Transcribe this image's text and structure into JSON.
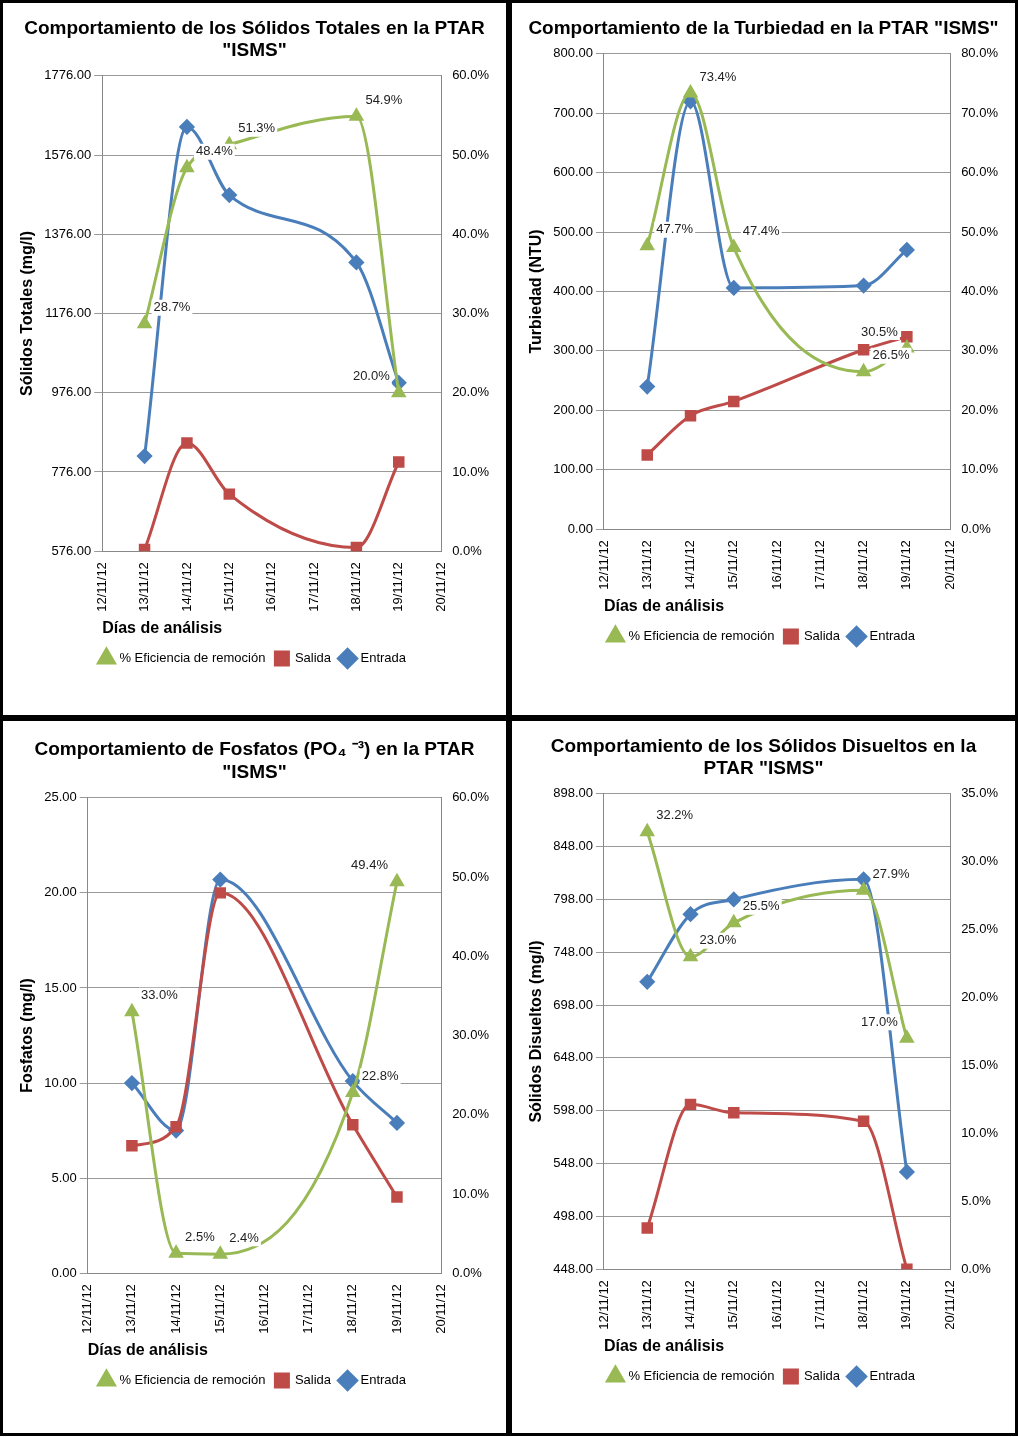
{
  "chart_data": [
    {
      "type": "line",
      "title": "Comportamiento  de los Sólidos Totales en la PTAR \"ISMS\"",
      "xlabel": "Días de análisis",
      "ylabel": "Sólidos Totales (mg/l)",
      "x": [
        "--11-13",
        "--11-14",
        "--11-15",
        "--11-18",
        "--11-19"
      ],
      "xlim": [
        "--11-12",
        "--11-20"
      ],
      "xticks": [
        {
          "value": "--11-12",
          "label": "12/11/12"
        },
        {
          "value": "--11-13",
          "label": "13/11/12"
        },
        {
          "value": "--11-14",
          "label": "14/11/12"
        },
        {
          "value": "--11-15",
          "label": "15/11/12"
        },
        {
          "value": "--11-16",
          "label": "16/11/12"
        },
        {
          "value": "--11-17",
          "label": "17/11/12"
        },
        {
          "value": "--11-18",
          "label": "18/11/12"
        },
        {
          "value": "--11-19",
          "label": "19/11/12"
        },
        {
          "value": "--11-20",
          "label": "20/11/12"
        }
      ],
      "ylim": [
        576,
        1776
      ],
      "yticks": [
        {
          "value": 576,
          "label": "576.00"
        },
        {
          "value": 776,
          "label": "776.00"
        },
        {
          "value": 976,
          "label": "976.00"
        },
        {
          "value": 1176,
          "label": "1176.00"
        },
        {
          "value": 1376,
          "label": "1376.00"
        },
        {
          "value": 1576,
          "label": "1576.00"
        },
        {
          "value": 1776,
          "label": "1776.00"
        }
      ],
      "y2lim": [
        0,
        60
      ],
      "y2ticks": [
        {
          "value": 0,
          "label": "0.0%"
        },
        {
          "value": 10,
          "label": "10.0%"
        },
        {
          "value": 20,
          "label": "20.0%"
        },
        {
          "value": 30,
          "label": "30.0%"
        },
        {
          "value": 40,
          "label": "40.0%"
        },
        {
          "value": 50,
          "label": "50.0%"
        },
        {
          "value": 60,
          "label": "60.0%"
        }
      ],
      "grid": "y",
      "legend": "bottom",
      "series": [
        {
          "name": "Entrada",
          "color": "#4a7ebb",
          "marker": "diamond",
          "values": [
            816,
            1647,
            1475,
            1305,
            1001
          ]
        },
        {
          "name": "Salida",
          "color": "#be4b48",
          "marker": "square",
          "values": [
            580,
            849,
            720,
            585,
            801
          ]
        },
        {
          "name": "% Eficiencia de remoción",
          "color": "#98b954",
          "marker": "triangle",
          "axis": "y2",
          "values": [
            28.7,
            48.4,
            51.3,
            54.9,
            20.0
          ],
          "value_labels": [
            "28.7%",
            "48.4%",
            "51.3%",
            "54.9%",
            "20.0%"
          ]
        }
      ]
    },
    {
      "type": "line",
      "title": "Comportamiento  de la Turbiedad en la PTAR \"ISMS\"",
      "xlabel": "Días de análisis",
      "ylabel": "Turbiedad (NTU)",
      "x": [
        "--11-13",
        "--11-14",
        "--11-15",
        "--11-18",
        "--11-19"
      ],
      "xlim": [
        "--11-12",
        "--11-20"
      ],
      "xticks": [
        {
          "value": "--11-12",
          "label": "12/11/12"
        },
        {
          "value": "--11-13",
          "label": "13/11/12"
        },
        {
          "value": "--11-14",
          "label": "14/11/12"
        },
        {
          "value": "--11-15",
          "label": "15/11/12"
        },
        {
          "value": "--11-16",
          "label": "16/11/12"
        },
        {
          "value": "--11-17",
          "label": "17/11/12"
        },
        {
          "value": "--11-18",
          "label": "18/11/12"
        },
        {
          "value": "--11-19",
          "label": "19/11/12"
        },
        {
          "value": "--11-20",
          "label": "20/11/12"
        }
      ],
      "ylim": [
        0,
        800
      ],
      "yticks": [
        {
          "value": 0,
          "label": "0.00"
        },
        {
          "value": 100,
          "label": "100.00"
        },
        {
          "value": 200,
          "label": "200.00"
        },
        {
          "value": 300,
          "label": "300.00"
        },
        {
          "value": 400,
          "label": "400.00"
        },
        {
          "value": 500,
          "label": "500.00"
        },
        {
          "value": 600,
          "label": "600.00"
        },
        {
          "value": 700,
          "label": "700.00"
        },
        {
          "value": 800,
          "label": "800.00"
        }
      ],
      "y2lim": [
        0,
        80
      ],
      "y2ticks": [
        {
          "value": 0,
          "label": "0.0%"
        },
        {
          "value": 10,
          "label": "10.0%"
        },
        {
          "value": 20,
          "label": "20.0%"
        },
        {
          "value": 30,
          "label": "30.0%"
        },
        {
          "value": 40,
          "label": "40.0%"
        },
        {
          "value": 50,
          "label": "50.0%"
        },
        {
          "value": 60,
          "label": "60.0%"
        },
        {
          "value": 70,
          "label": "70.0%"
        },
        {
          "value": 80,
          "label": "80.0%"
        }
      ],
      "grid": "y",
      "legend": "bottom",
      "series": [
        {
          "name": "Entrada",
          "color": "#4a7ebb",
          "marker": "diamond",
          "values": [
            240,
            720,
            406,
            410,
            470
          ]
        },
        {
          "name": "Salida",
          "color": "#be4b48",
          "marker": "square",
          "values": [
            125,
            191,
            215,
            302,
            324
          ]
        },
        {
          "name": "% Eficiencia de remoción",
          "color": "#98b954",
          "marker": "triangle",
          "axis": "y2",
          "values": [
            47.7,
            73.4,
            47.4,
            26.5,
            30.5
          ],
          "value_labels": [
            "47.7%",
            "73.4%",
            "47.4%",
            "26.5%",
            "30.5%"
          ]
        }
      ]
    },
    {
      "type": "line",
      "title": "Comportamiento  de Fosfatos (PO₄ ⁻³) en la PTAR \"ISMS\"",
      "xlabel": "Días de análisis",
      "ylabel": "Fosfatos (mg/l)",
      "x": [
        "--11-13",
        "--11-14",
        "--11-15",
        "--11-18",
        "--11-19"
      ],
      "xlim": [
        "--11-12",
        "--11-20"
      ],
      "xticks": [
        {
          "value": "--11-12",
          "label": "12/11/12"
        },
        {
          "value": "--11-13",
          "label": "13/11/12"
        },
        {
          "value": "--11-14",
          "label": "14/11/12"
        },
        {
          "value": "--11-15",
          "label": "15/11/12"
        },
        {
          "value": "--11-16",
          "label": "16/11/12"
        },
        {
          "value": "--11-17",
          "label": "17/11/12"
        },
        {
          "value": "--11-18",
          "label": "18/11/12"
        },
        {
          "value": "--11-19",
          "label": "19/11/12"
        },
        {
          "value": "--11-20",
          "label": "20/11/12"
        }
      ],
      "ylim": [
        0,
        25
      ],
      "yticks": [
        {
          "value": 0,
          "label": "0.00"
        },
        {
          "value": 5,
          "label": "5.00"
        },
        {
          "value": 10,
          "label": "10.00"
        },
        {
          "value": 15,
          "label": "15.00"
        },
        {
          "value": 20,
          "label": "20.00"
        },
        {
          "value": 25,
          "label": "25.00"
        }
      ],
      "y2lim": [
        0,
        60
      ],
      "y2ticks": [
        {
          "value": 0,
          "label": "0.0%"
        },
        {
          "value": 10,
          "label": "10.0%"
        },
        {
          "value": 20,
          "label": "20.0%"
        },
        {
          "value": 30,
          "label": "30.0%"
        },
        {
          "value": 40,
          "label": "40.0%"
        },
        {
          "value": 50,
          "label": "50.0%"
        },
        {
          "value": 60,
          "label": "60.0%"
        }
      ],
      "grid": "y",
      "legend": "bottom",
      "series": [
        {
          "name": "Entrada",
          "color": "#4a7ebb",
          "marker": "diamond",
          "values": [
            10.0,
            7.5,
            20.7,
            10.1,
            7.9
          ]
        },
        {
          "name": "Salida",
          "color": "#be4b48",
          "marker": "square",
          "values": [
            6.7,
            7.7,
            20.0,
            7.8,
            4.0
          ]
        },
        {
          "name": "% Eficiencia de remoción",
          "color": "#98b954",
          "marker": "triangle",
          "axis": "y2",
          "values": [
            33.0,
            2.5,
            2.4,
            22.8,
            49.4
          ],
          "value_labels": [
            "33.0%",
            "2.5%",
            "2.4%",
            "22.8%",
            "49.4%"
          ]
        }
      ]
    },
    {
      "type": "line",
      "title": "Comportamiento  de los Sólidos Disueltos en la PTAR \"ISMS\"",
      "xlabel": "Días de análisis",
      "ylabel": "Sólidos Disueltos (mg/l)",
      "x": [
        "--11-13",
        "--11-14",
        "--11-15",
        "--11-18",
        "--11-19"
      ],
      "xlim": [
        "--11-12",
        "--11-20"
      ],
      "xticks": [
        {
          "value": "--11-12",
          "label": "12/11/12"
        },
        {
          "value": "--11-13",
          "label": "13/11/12"
        },
        {
          "value": "--11-14",
          "label": "14/11/12"
        },
        {
          "value": "--11-15",
          "label": "15/11/12"
        },
        {
          "value": "--11-16",
          "label": "16/11/12"
        },
        {
          "value": "--11-17",
          "label": "17/11/12"
        },
        {
          "value": "--11-18",
          "label": "18/11/12"
        },
        {
          "value": "--11-19",
          "label": "19/11/12"
        },
        {
          "value": "--11-20",
          "label": "20/11/12"
        }
      ],
      "ylim": [
        448,
        898
      ],
      "yticks": [
        {
          "value": 448,
          "label": "448.00"
        },
        {
          "value": 498,
          "label": "498.00"
        },
        {
          "value": 548,
          "label": "548.00"
        },
        {
          "value": 598,
          "label": "598.00"
        },
        {
          "value": 648,
          "label": "648.00"
        },
        {
          "value": 698,
          "label": "698.00"
        },
        {
          "value": 748,
          "label": "748.00"
        },
        {
          "value": 798,
          "label": "798.00"
        },
        {
          "value": 848,
          "label": "848.00"
        },
        {
          "value": 898,
          "label": "898.00"
        }
      ],
      "y2lim": [
        0,
        35
      ],
      "y2ticks": [
        {
          "value": 0,
          "label": "0.0%"
        },
        {
          "value": 5,
          "label": "5.0%"
        },
        {
          "value": 10,
          "label": "10.0%"
        },
        {
          "value": 15,
          "label": "15.0%"
        },
        {
          "value": 20,
          "label": "20.0%"
        },
        {
          "value": 25,
          "label": "25.0%"
        },
        {
          "value": 30,
          "label": "30.0%"
        },
        {
          "value": 35,
          "label": "35.0%"
        }
      ],
      "grid": "y",
      "legend": "bottom",
      "series": [
        {
          "name": "Entrada",
          "color": "#4a7ebb",
          "marker": "diamond",
          "values": [
            720,
            784,
            798,
            817,
            540
          ]
        },
        {
          "name": "Salida",
          "color": "#be4b48",
          "marker": "square",
          "values": [
            487,
            604,
            596,
            588,
            448
          ]
        },
        {
          "name": "% Eficiencia de remoción",
          "color": "#98b954",
          "marker": "triangle",
          "axis": "y2",
          "values": [
            32.2,
            23.0,
            25.5,
            27.9,
            17.0
          ],
          "value_labels": [
            "32.2%",
            "23.0%",
            "25.5%",
            "27.9%",
            "17.0%"
          ]
        }
      ]
    }
  ]
}
